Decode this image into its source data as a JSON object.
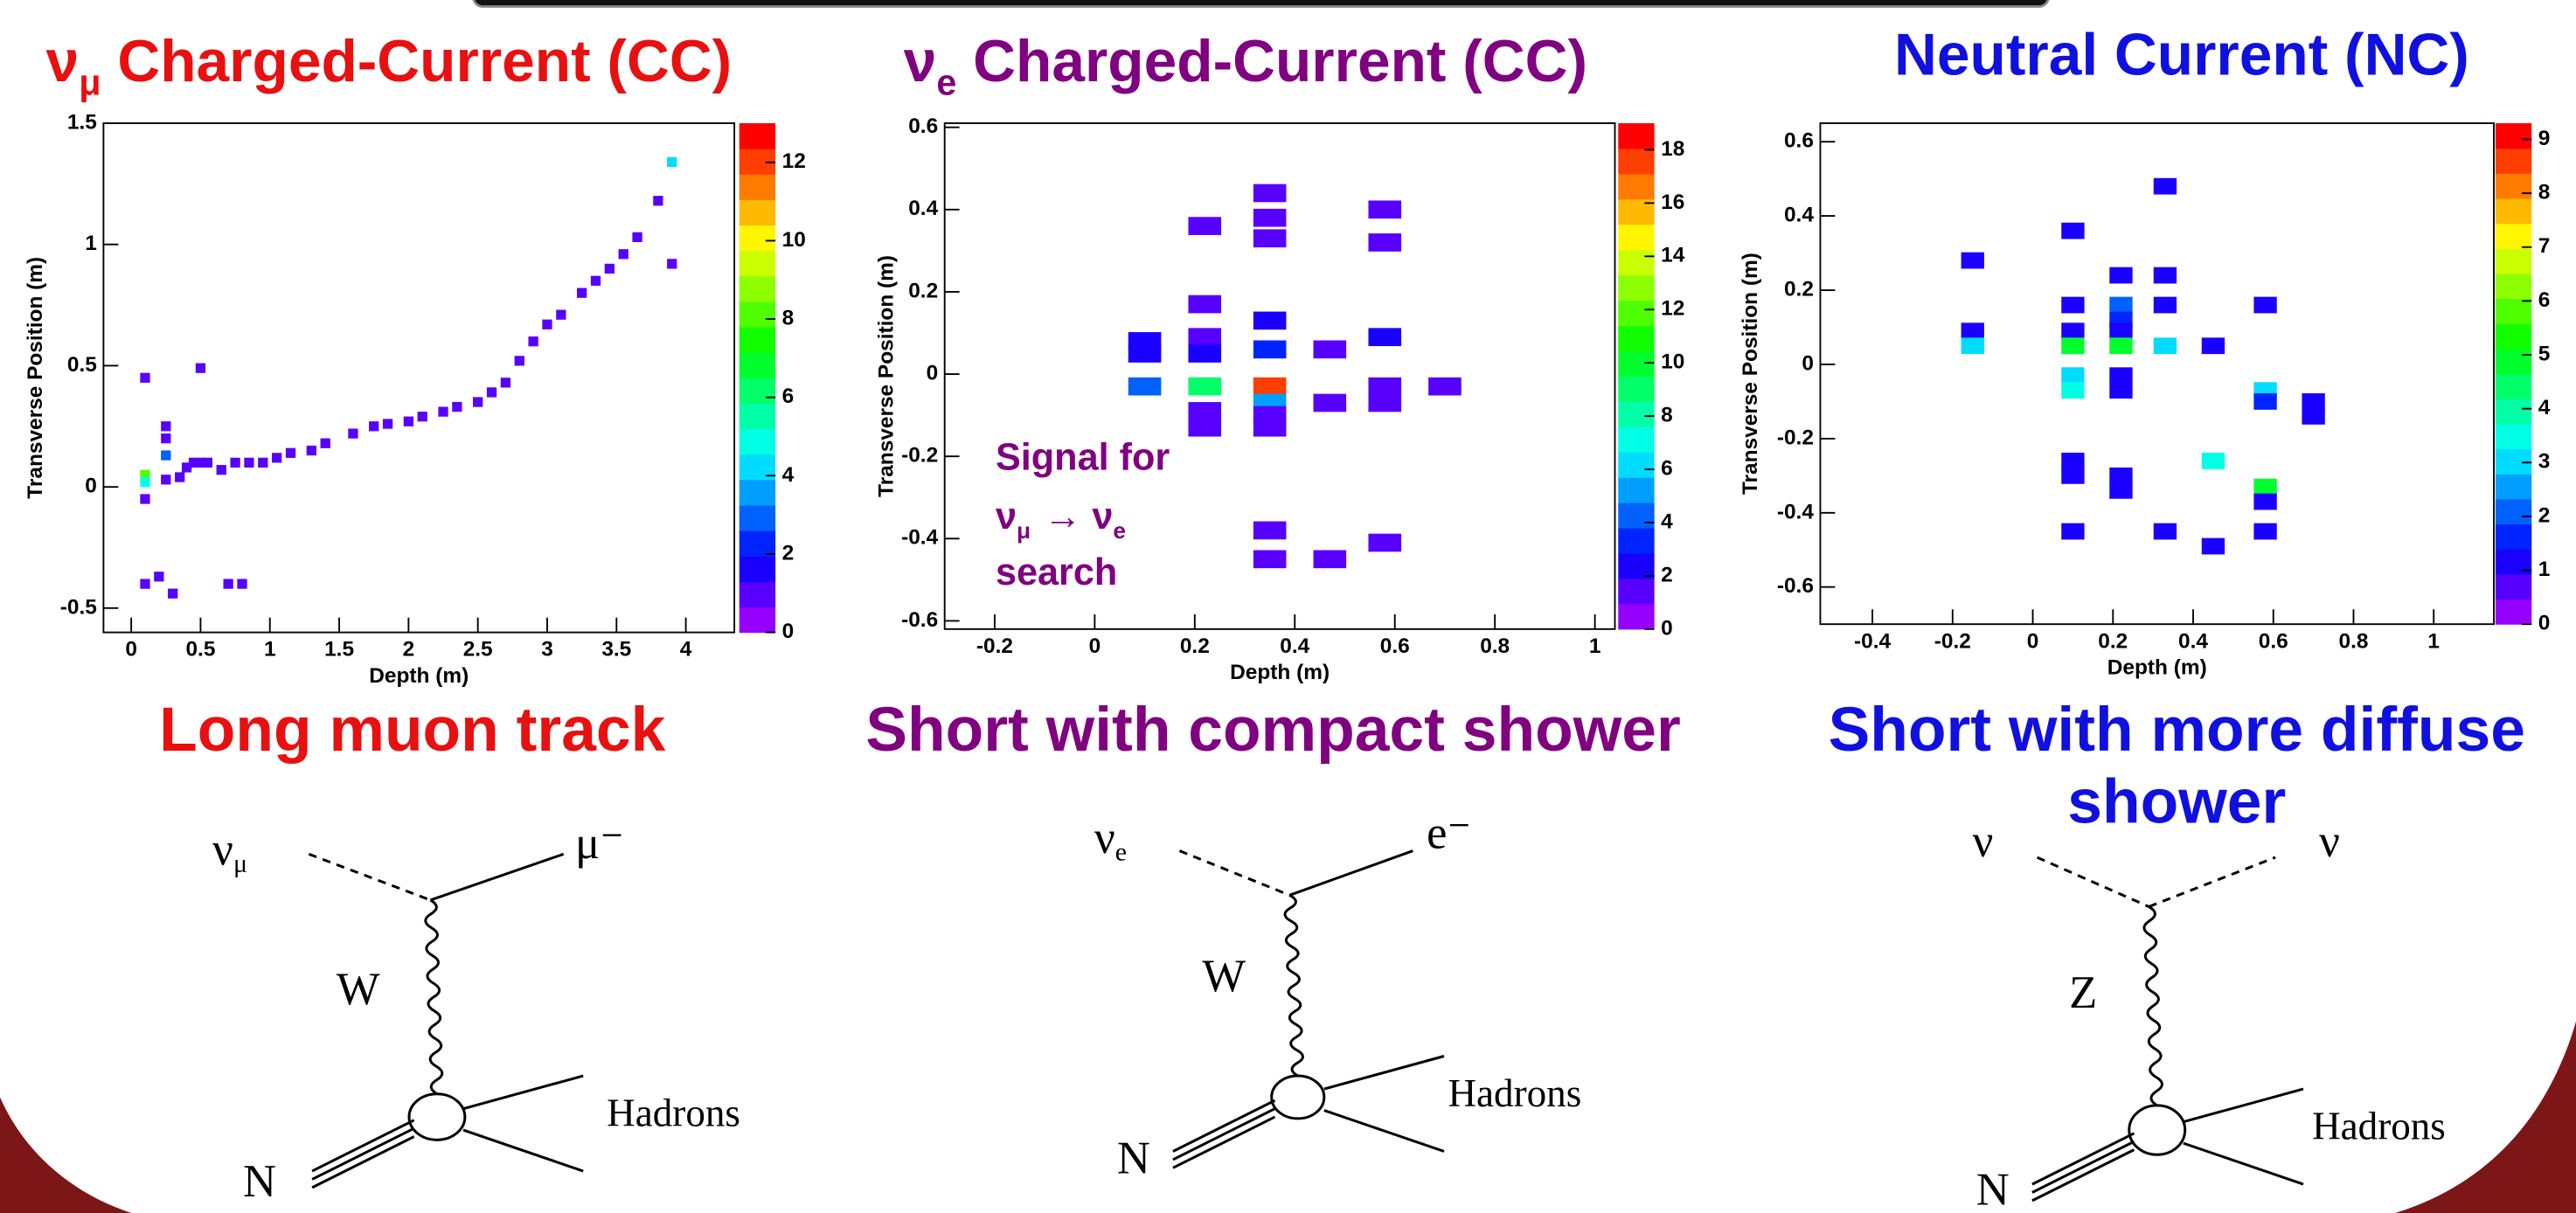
{
  "chart_data": [
    {
      "type": "heatmap",
      "title": {
        "symbol": "ν",
        "subscript": "μ",
        "text": "Charged-Current (CC)"
      },
      "color": "#e81010",
      "xlabel": "Depth (m)",
      "ylabel": "Transverse Position (m)",
      "x": [
        0.1,
        0.1,
        0.1,
        0.1,
        0.25,
        0.25,
        0.25,
        0.25,
        0.35,
        0.4,
        0.45,
        0.5,
        0.55,
        0.5,
        0.65,
        0.75,
        0.85,
        0.95,
        1.05,
        1.15,
        1.3,
        1.4,
        1.6,
        1.75,
        1.85,
        2.0,
        2.1,
        2.25,
        2.35,
        2.5,
        2.6,
        2.7,
        2.8,
        2.9,
        3.0,
        3.1,
        3.25,
        3.35,
        3.45,
        3.55,
        3.65,
        3.8,
        3.9,
        3.9,
        0.1,
        0.2,
        0.3,
        0.7,
        0.8
      ],
      "y": [
        0.05,
        0.02,
        -0.05,
        0.45,
        0.25,
        0.2,
        0.13,
        0.03,
        0.04,
        0.08,
        0.1,
        0.1,
        0.1,
        0.49,
        0.07,
        0.1,
        0.1,
        0.1,
        0.12,
        0.14,
        0.15,
        0.18,
        0.22,
        0.25,
        0.26,
        0.27,
        0.29,
        0.31,
        0.33,
        0.35,
        0.39,
        0.43,
        0.52,
        0.6,
        0.67,
        0.71,
        0.8,
        0.85,
        0.9,
        0.96,
        1.03,
        1.18,
        1.34,
        0.92,
        -0.4,
        -0.37,
        -0.44,
        -0.4,
        -0.4
      ],
      "values": [
        8,
        5,
        1,
        1,
        1,
        1,
        3,
        1,
        1,
        1,
        1,
        1,
        1,
        1,
        1,
        1,
        1,
        1,
        1,
        1,
        1,
        1,
        1,
        1,
        1,
        1,
        1,
        1,
        1,
        1,
        1,
        1,
        1,
        1,
        1,
        1,
        1,
        1,
        1,
        1,
        1,
        1,
        4,
        1,
        1,
        1,
        1,
        1,
        1
      ],
      "xlim": [
        -0.2,
        4.35
      ],
      "ylim": [
        -0.6,
        1.5
      ],
      "xticks": [
        0,
        0.5,
        1,
        1.5,
        2,
        2.5,
        3,
        3.5,
        4
      ],
      "yticks": [
        -0.5,
        0,
        0.5,
        1,
        1.5
      ],
      "clim": [
        0,
        13
      ],
      "cticks": [
        0,
        2,
        4,
        6,
        8,
        10,
        12
      ],
      "colormap": "rainbow",
      "caption": [
        "Long muon track"
      ]
    },
    {
      "type": "heatmap",
      "title": {
        "symbol": "ν",
        "subscript": "e",
        "text": "Charged-Current (CC)"
      },
      "color": "#800080",
      "xlabel": "Depth (m)",
      "ylabel": "Transverse Position (m)",
      "x": [
        0.1,
        0.1,
        0.1,
        0.22,
        0.22,
        0.22,
        0.22,
        0.22,
        0.22,
        0.22,
        0.35,
        0.35,
        0.35,
        0.35,
        0.35,
        0.35,
        0.35,
        0.35,
        0.35,
        0.47,
        0.47,
        0.35,
        0.35,
        0.47,
        0.58,
        0.58,
        0.58,
        0.58,
        0.58,
        0.58,
        0.7
      ],
      "y": [
        0.08,
        0.05,
        -0.03,
        0.36,
        0.17,
        0.09,
        0.05,
        -0.03,
        -0.09,
        -0.13,
        0.44,
        0.38,
        0.33,
        0.13,
        0.06,
        -0.03,
        -0.07,
        -0.1,
        -0.13,
        0.06,
        -0.07,
        -0.38,
        -0.45,
        -0.45,
        0.4,
        0.32,
        0.09,
        -0.03,
        -0.07,
        -0.41,
        -0.03
      ],
      "values": [
        2,
        2,
        4,
        1,
        1,
        1,
        2,
        9,
        1,
        1,
        1,
        1,
        1,
        2,
        3,
        18,
        5,
        1,
        1,
        1,
        1,
        1,
        1,
        1,
        1,
        1,
        2,
        1,
        1,
        1,
        1
      ],
      "xlim": [
        -0.3,
        1.04
      ],
      "ylim": [
        -0.62,
        0.61
      ],
      "xticks": [
        -0.2,
        0,
        0.2,
        0.4,
        0.6,
        0.8,
        1
      ],
      "yticks": [
        -0.6,
        -0.4,
        -0.2,
        0,
        0.2,
        0.4,
        0.6
      ],
      "clim": [
        0,
        19
      ],
      "cticks": [
        0,
        2,
        4,
        6,
        8,
        10,
        12,
        14,
        16,
        18
      ],
      "colormap": "rainbow",
      "annotation": {
        "line1": "Signal for",
        "symbol1": "ν",
        "sub1": "μ",
        "arrow": "→ ν",
        "sub2": "e",
        "line3": "search"
      },
      "caption": [
        "Short with compact shower"
      ]
    },
    {
      "type": "heatmap",
      "title": {
        "text": "Neutral Current (NC)"
      },
      "color": "#1010e0",
      "xlabel": "Depth (m)",
      "ylabel": "Transverse Position (m)",
      "x": [
        -0.15,
        -0.15,
        -0.15,
        0.1,
        0.1,
        0.1,
        0.1,
        0.1,
        0.1,
        0.1,
        0.1,
        0.1,
        0.22,
        0.22,
        0.22,
        0.22,
        0.22,
        0.22,
        0.22,
        0.22,
        0.22,
        0.33,
        0.33,
        0.33,
        0.33,
        0.33,
        0.45,
        0.45,
        0.45,
        0.58,
        0.58,
        0.58,
        0.58,
        0.58,
        0.58,
        0.7,
        0.7
      ],
      "y": [
        0.28,
        0.09,
        0.05,
        0.36,
        0.16,
        0.09,
        0.05,
        -0.03,
        -0.07,
        -0.26,
        -0.3,
        -0.45,
        0.24,
        0.16,
        0.12,
        0.09,
        0.05,
        -0.03,
        -0.07,
        -0.3,
        -0.34,
        0.48,
        0.24,
        0.16,
        0.05,
        -0.45,
        0.05,
        -0.26,
        -0.49,
        0.16,
        -0.07,
        -0.1,
        -0.33,
        -0.37,
        -0.45,
        -0.1,
        -0.14
      ],
      "values": [
        1,
        1,
        3,
        1,
        1,
        1,
        5,
        3,
        3.5,
        1,
        1,
        1,
        1,
        2,
        1.5,
        1,
        5,
        1,
        1,
        1,
        1,
        1,
        1,
        1,
        3,
        1,
        1,
        3.5,
        1,
        1,
        3,
        1.5,
        5,
        1,
        1,
        1,
        1
      ],
      "xlim": [
        -0.53,
        1.15
      ],
      "ylim": [
        -0.7,
        0.65
      ],
      "xticks": [
        -0.4,
        -0.2,
        0,
        0.2,
        0.4,
        0.6,
        0.8,
        1
      ],
      "yticks": [
        -0.6,
        -0.4,
        -0.2,
        0,
        0.2,
        0.4,
        0.6
      ],
      "clim": [
        0,
        9.3
      ],
      "cticks": [
        0,
        1,
        2,
        3,
        4,
        5,
        6,
        7,
        8,
        9
      ],
      "colormap": "rainbow",
      "caption": [
        "Short with more diffuse",
        "shower"
      ]
    }
  ],
  "diagrams": [
    {
      "incoming": "ν",
      "incoming_sub": "μ",
      "outgoing": "μ⁻",
      "boson": "W",
      "target": "N",
      "products": "Hadrons"
    },
    {
      "incoming": "ν",
      "incoming_sub": "e",
      "outgoing": "e⁻",
      "boson": "W",
      "target": "N",
      "products": "Hadrons"
    },
    {
      "incoming": "ν",
      "outgoing": "ν",
      "boson": "Z",
      "target": "N",
      "products": "Hadrons"
    }
  ]
}
